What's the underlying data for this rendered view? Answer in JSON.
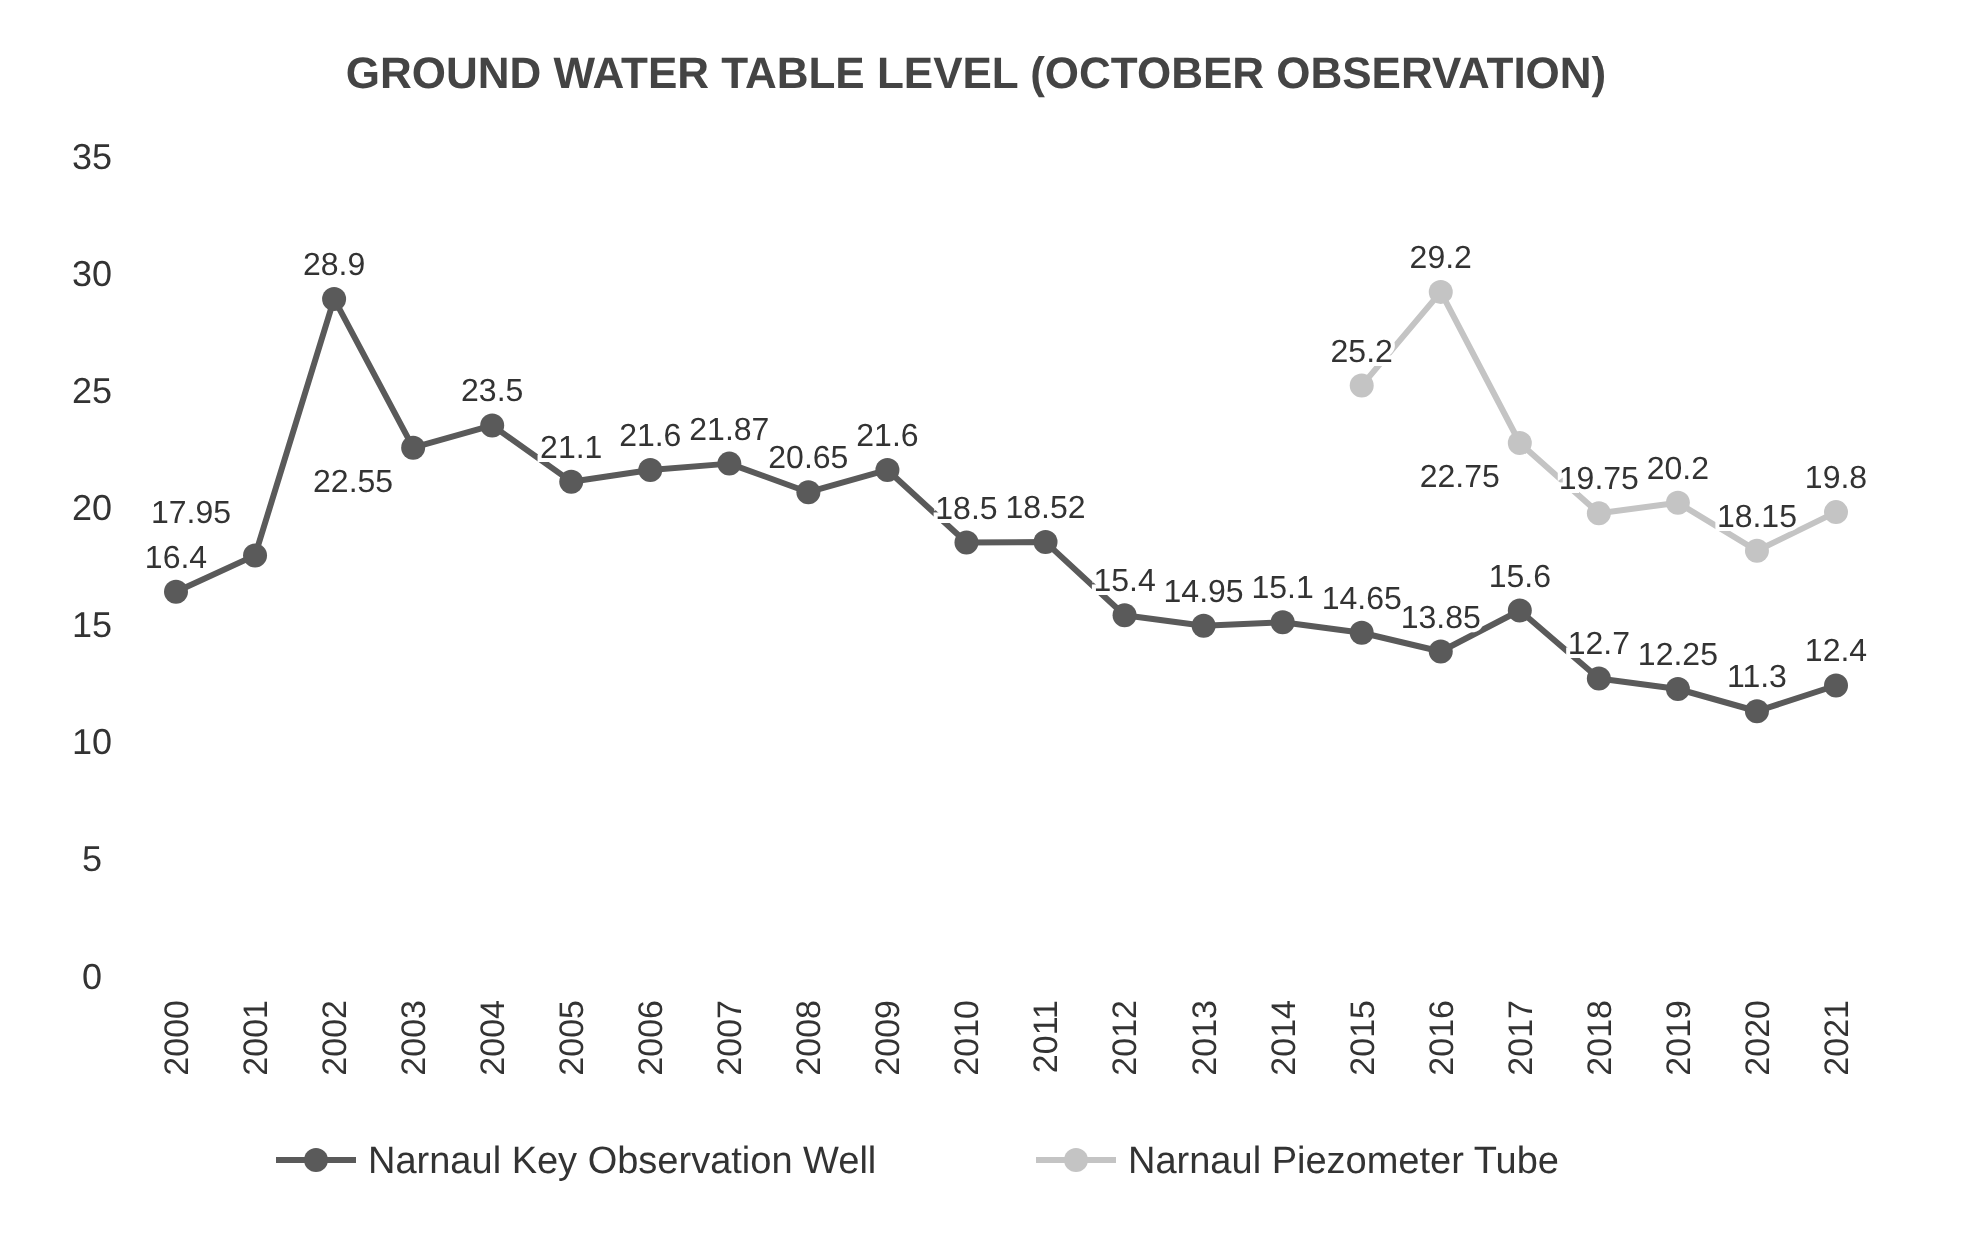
{
  "chart_data": {
    "type": "line",
    "title": "GROUND WATER TABLE LEVEL (OCTOBER OBSERVATION)",
    "categories": [
      "2000",
      "2001",
      "2002",
      "2003",
      "2004",
      "2005",
      "2006",
      "2007",
      "2008",
      "2009",
      "2010",
      "2011",
      "2012",
      "2013",
      "2014",
      "2015",
      "2016",
      "2017",
      "2018",
      "2019",
      "2020",
      "2021"
    ],
    "series": [
      {
        "name": "Narnaul Key Observation Well",
        "color": "#5a5a5a",
        "values": [
          16.4,
          17.95,
          28.9,
          22.55,
          23.5,
          21.1,
          21.6,
          21.87,
          20.65,
          21.6,
          18.5,
          18.52,
          15.4,
          14.95,
          15.1,
          14.65,
          13.85,
          15.6,
          12.7,
          12.25,
          11.3,
          12.4
        ]
      },
      {
        "name": "Narnaul Piezometer Tube",
        "color": "#c4c4c4",
        "values": [
          null,
          null,
          null,
          null,
          null,
          null,
          null,
          null,
          null,
          null,
          null,
          null,
          null,
          null,
          null,
          25.2,
          29.2,
          22.75,
          19.75,
          20.2,
          18.15,
          19.8
        ]
      }
    ],
    "ylim": [
      0,
      35
    ],
    "yticks": [
      0,
      5,
      10,
      15,
      20,
      25,
      30,
      35
    ],
    "grid": false,
    "legend": "bottom",
    "marker": "circle",
    "line_style": "solid",
    "data_labels": true
  }
}
